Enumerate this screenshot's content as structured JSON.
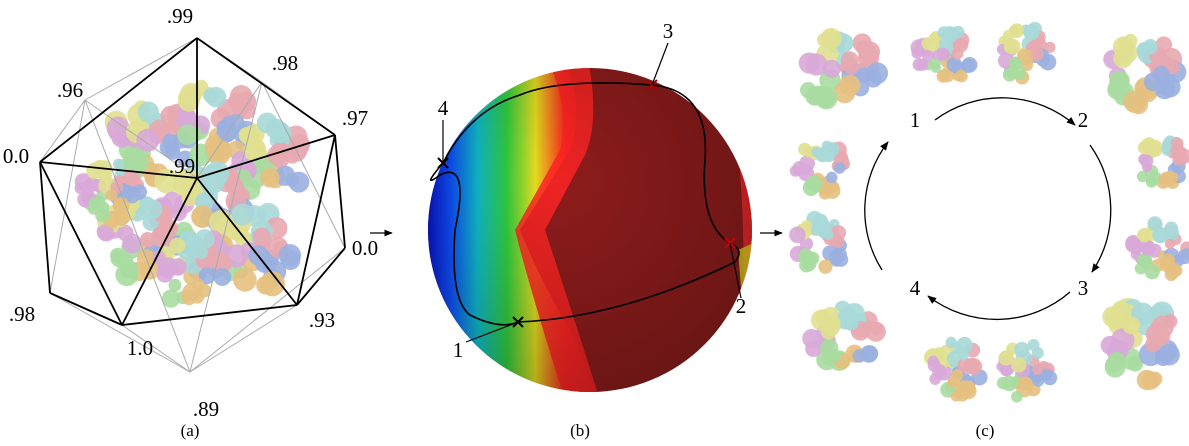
{
  "panels": [
    {
      "caption": "(a)",
      "vertex_labels": [
        ".99",
        ".98",
        ".96",
        ".97",
        "0.0",
        ".99",
        "0.0",
        ".98",
        "1.0",
        ".93",
        ".89"
      ]
    },
    {
      "caption": "(b)",
      "point_labels": [
        "1",
        "2",
        "3",
        "4"
      ]
    },
    {
      "caption": "(c)",
      "state_labels": [
        "1",
        "2",
        "3",
        "4"
      ]
    }
  ]
}
